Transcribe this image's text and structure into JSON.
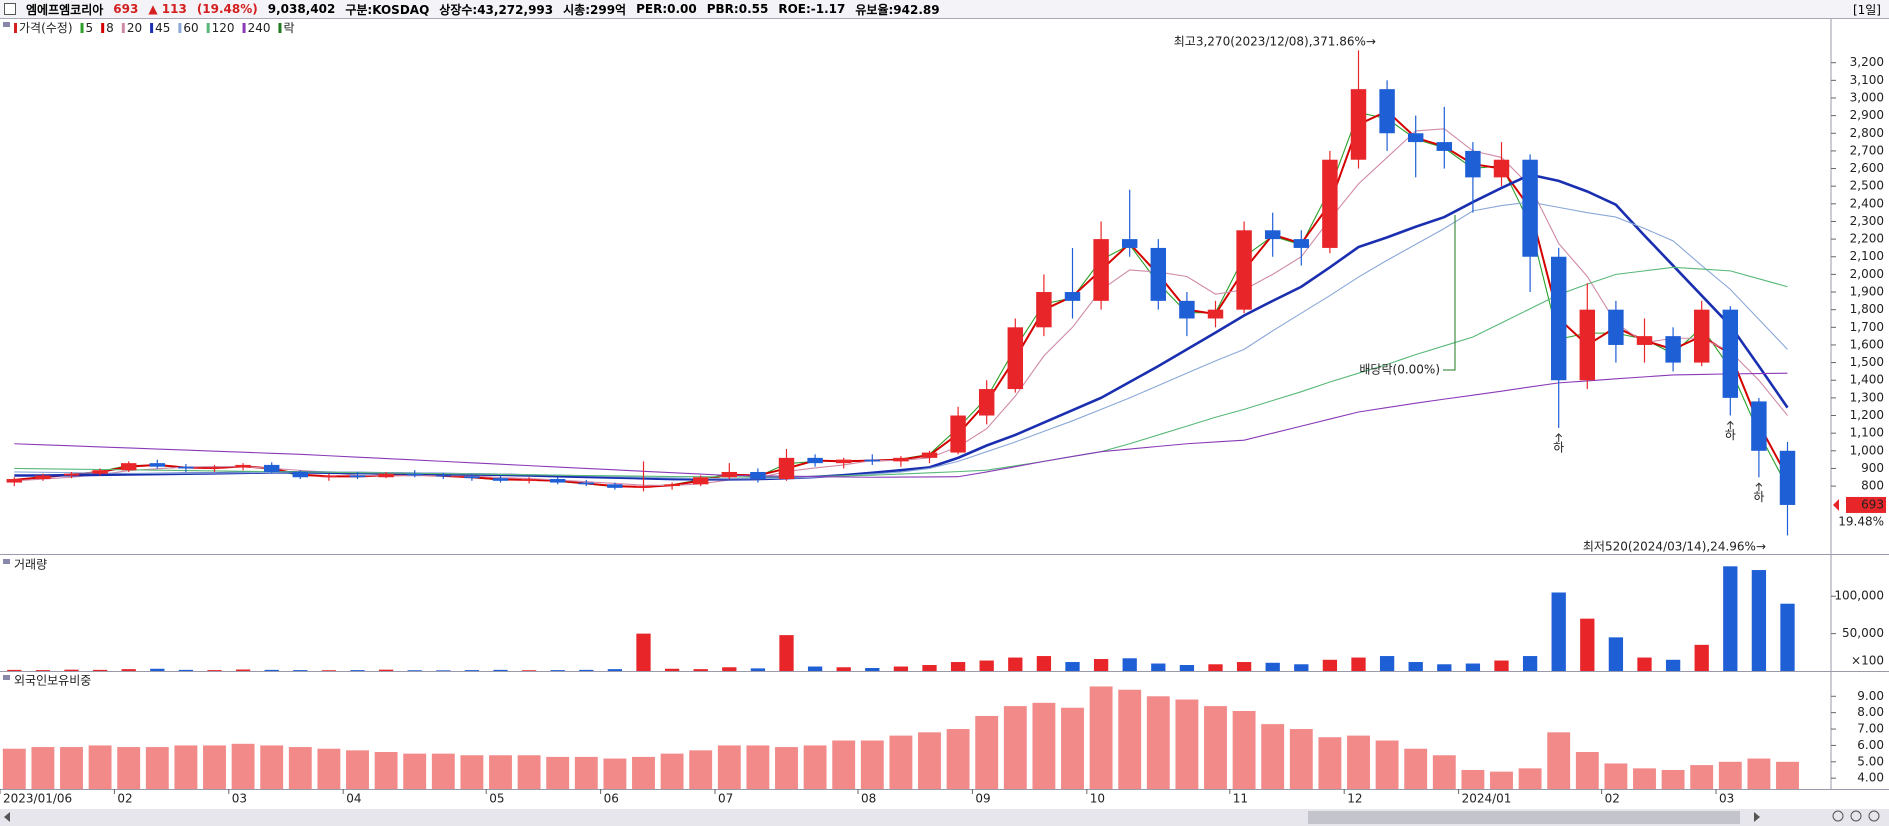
{
  "header": {
    "name": "엠에프엠코리아",
    "price": "693",
    "change": "▲ 113",
    "change_pct": "(19.48%)",
    "volume": "9,038,402",
    "market": "구분:KOSDAQ",
    "shares": "상장수:43,272,993",
    "market_cap": "시총:299억",
    "per": "PER:0.00",
    "pbr": "PBR:0.55",
    "roe": "ROE:-1.17",
    "reserve_ratio": "유보율:942.89",
    "period": "[1일]"
  },
  "chart_data": [
    {
      "type": "candlestick",
      "price_name": "가격(수정)",
      "price_color": "#d42020",
      "ex_rights_name": "락",
      "ex_rights_color": "#1f7a1f",
      "up_color": "#e8262a",
      "down_color": "#1f5fd6",
      "categories": [
        "2023/01/06",
        null,
        null,
        null,
        "02",
        null,
        null,
        null,
        "03",
        null,
        null,
        null,
        "04",
        null,
        null,
        null,
        null,
        "05",
        null,
        null,
        null,
        "06",
        null,
        null,
        null,
        "07",
        null,
        null,
        null,
        null,
        "08",
        null,
        null,
        null,
        "09",
        null,
        null,
        null,
        "10",
        null,
        null,
        null,
        null,
        "11",
        null,
        null,
        null,
        "12",
        null,
        null,
        null,
        "2024/01",
        null,
        null,
        null,
        null,
        "02",
        null,
        null,
        null,
        "03",
        null,
        null
      ],
      "open": [
        820,
        840,
        860,
        870,
        890,
        930,
        910,
        900,
        905,
        920,
        880,
        850,
        860,
        850,
        870,
        860,
        855,
        845,
        830,
        840,
        820,
        810,
        790,
        800,
        810,
        850,
        880,
        840,
        960,
        930,
        950,
        940,
        960,
        990,
        1200,
        1350,
        1700,
        1900,
        1850,
        2200,
        2150,
        1850,
        1750,
        1800,
        2250,
        2200,
        2150,
        2650,
        3050,
        2800,
        2750,
        2700,
        2550,
        2650,
        2100,
        1400,
        1800,
        1600,
        1650,
        1500,
        1800,
        1280,
        1000
      ],
      "high": [
        850,
        870,
        880,
        900,
        940,
        950,
        925,
        920,
        930,
        935,
        890,
        870,
        880,
        880,
        890,
        875,
        870,
        860,
        850,
        850,
        835,
        820,
        940,
        820,
        860,
        930,
        900,
        1010,
        980,
        960,
        980,
        970,
        1000,
        1250,
        1400,
        1750,
        2000,
        2150,
        2300,
        2480,
        2200,
        1900,
        1850,
        2300,
        2350,
        2250,
        2700,
        3270,
        3100,
        2900,
        2950,
        2750,
        2750,
        2680,
        2150,
        1950,
        1850,
        1750,
        1700,
        1850,
        1820,
        1300,
        1050
      ],
      "low": [
        800,
        830,
        845,
        860,
        880,
        900,
        880,
        880,
        890,
        870,
        840,
        830,
        840,
        845,
        850,
        840,
        830,
        820,
        815,
        810,
        800,
        780,
        770,
        780,
        800,
        840,
        820,
        830,
        910,
        900,
        920,
        910,
        930,
        980,
        1150,
        1330,
        1650,
        1750,
        1800,
        2100,
        1800,
        1650,
        1700,
        1780,
        2100,
        2050,
        2120,
        2600,
        2700,
        2550,
        2600,
        2350,
        2500,
        1900,
        1130,
        1350,
        1500,
        1500,
        1450,
        1480,
        1200,
        850,
        520
      ],
      "close": [
        840,
        860,
        870,
        890,
        930,
        910,
        900,
        905,
        920,
        880,
        850,
        860,
        850,
        870,
        860,
        855,
        845,
        830,
        840,
        820,
        810,
        790,
        800,
        810,
        850,
        880,
        840,
        960,
        930,
        950,
        940,
        960,
        990,
        1200,
        1350,
        1700,
        1900,
        1850,
        2200,
        2150,
        1850,
        1750,
        1800,
        2250,
        2200,
        2150,
        2650,
        3050,
        2800,
        2750,
        2700,
        2550,
        2650,
        2100,
        1400,
        1800,
        1600,
        1650,
        1500,
        1800,
        1300,
        1000,
        693
      ],
      "series": [
        {
          "name": "5",
          "color": "#2aa02a",
          "values": [
            835,
            853,
            867,
            883,
            917,
            917,
            903,
            903,
            915,
            893,
            860,
            857,
            853,
            863,
            863,
            857,
            848,
            835,
            837,
            827,
            813,
            797,
            797,
            807,
            837,
            870,
            853,
            927,
            940,
            943,
            943,
            953,
            980,
            1130,
            1300,
            1583,
            1833,
            1867,
            2083,
            2167,
            1950,
            1783,
            1783,
            2100,
            2217,
            2167,
            2483,
            2917,
            2883,
            2767,
            2717,
            2600,
            2617,
            2283,
            1633,
            1667,
            1667,
            1633,
            1550,
            1700,
            1467,
            1100,
            795
          ]
        },
        {
          "name": "8",
          "color": "#d40000",
          "values": [
            835,
            850,
            865,
            880,
            910,
            920,
            905,
            902,
            912,
            900,
            865,
            855,
            855,
            860,
            865,
            858,
            850,
            838,
            835,
            830,
            815,
            800,
            795,
            805,
            830,
            865,
            860,
            900,
            945,
            940,
            945,
            950,
            975,
            1095,
            1275,
            1525,
            1800,
            1875,
            2025,
            2175,
            2000,
            1800,
            1775,
            2025,
            2225,
            2175,
            2400,
            2850,
            2925,
            2775,
            2725,
            2625,
            2600,
            2375,
            1750,
            1600,
            1700,
            1625,
            1575,
            1650,
            1550,
            1150,
            850
          ]
        },
        {
          "name": "20",
          "color": "#d08aa8",
          "values": [
            830,
            840,
            850,
            865,
            888,
            898,
            908,
            911,
            909,
            901,
            889,
            879,
            860,
            858,
            859,
            859,
            858,
            848,
            843,
            834,
            825,
            815,
            805,
            803,
            813,
            835,
            845,
            883,
            903,
            920,
            945,
            945,
            960,
            1023,
            1125,
            1310,
            1538,
            1700,
            1913,
            2025,
            2013,
            1988,
            1888,
            1913,
            2000,
            2100,
            2313,
            2513,
            2663,
            2813,
            2825,
            2700,
            2663,
            2500,
            2175,
            1988,
            1725,
            1613,
            1638,
            1638,
            1563,
            1400,
            1200
          ]
        },
        {
          "name": "45",
          "color": "#1a2fb0",
          "values": [
            860,
            860,
            862,
            864,
            866,
            868,
            870,
            872,
            875,
            878,
            878,
            876,
            874,
            872,
            870,
            868,
            866,
            864,
            860,
            856,
            852,
            848,
            844,
            840,
            838,
            838,
            840,
            845,
            852,
            862,
            875,
            890,
            906,
            960,
            1030,
            1090,
            1160,
            1230,
            1300,
            1390,
            1480,
            1575,
            1670,
            1767,
            1850,
            1930,
            2040,
            2155,
            2210,
            2270,
            2325,
            2410,
            2490,
            2565,
            2530,
            2470,
            2395,
            2220,
            2050,
            1880,
            1710,
            1480,
            1245
          ]
        },
        {
          "name": "60",
          "color": "#8aa8d8",
          "values": [
            880,
            878,
            876,
            874,
            872,
            872,
            872,
            874,
            876,
            878,
            880,
            880,
            878,
            876,
            874,
            872,
            870,
            868,
            865,
            862,
            858,
            854,
            850,
            846,
            843,
            842,
            842,
            845,
            850,
            858,
            868,
            880,
            900,
            940,
            995,
            1050,
            1110,
            1170,
            1235,
            1300,
            1370,
            1440,
            1510,
            1575,
            1680,
            1780,
            1880,
            1985,
            2080,
            2170,
            2260,
            2360,
            2390,
            2410,
            2380,
            2350,
            2325,
            2260,
            2190,
            2050,
            1915,
            1745,
            1575
          ]
        },
        {
          "name": "120",
          "color": "#58b878",
          "values": [
            900,
            898,
            896,
            894,
            892,
            890,
            888,
            886,
            884,
            882,
            880,
            878,
            876,
            874,
            872,
            870,
            868,
            866,
            864,
            862,
            860,
            858,
            856,
            854,
            853,
            852,
            852,
            853,
            855,
            858,
            862,
            868,
            875,
            882,
            890,
            915,
            940,
            968,
            995,
            1040,
            1090,
            1140,
            1190,
            1235,
            1285,
            1335,
            1390,
            1440,
            1490,
            1545,
            1595,
            1645,
            1725,
            1805,
            1885,
            1945,
            2000,
            2020,
            2040,
            2030,
            2020,
            1975,
            1930
          ]
        },
        {
          "name": "240",
          "color": "#8a3ab8",
          "values": [
            1040,
            1034,
            1028,
            1022,
            1016,
            1010,
            1004,
            998,
            992,
            986,
            980,
            972,
            964,
            956,
            948,
            940,
            932,
            924,
            916,
            908,
            900,
            892,
            884,
            876,
            868,
            860,
            858,
            856,
            854,
            852,
            850,
            851,
            852,
            853,
            880,
            910,
            940,
            968,
            995,
            1010,
            1025,
            1040,
            1050,
            1060,
            1100,
            1140,
            1180,
            1220,
            1245,
            1270,
            1293,
            1315,
            1338,
            1362,
            1385,
            1396,
            1408,
            1419,
            1430,
            1433,
            1436,
            1438,
            1440
          ]
        }
      ],
      "ylim": [
        415,
        3446
      ],
      "yticks": [
        800,
        900,
        {
          "value": 1000,
          "label": "1,000"
        },
        {
          "value": 1100,
          "label": "1,100"
        },
        {
          "value": 1200,
          "label": "1,200"
        },
        {
          "value": 1300,
          "label": "1,300"
        },
        {
          "value": 1400,
          "label": "1,400"
        },
        {
          "value": 1500,
          "label": "1,500"
        },
        {
          "value": 1600,
          "label": "1,600"
        },
        {
          "value": 1700,
          "label": "1,700"
        },
        {
          "value": 1800,
          "label": "1,800"
        },
        {
          "value": 1900,
          "label": "1,900"
        },
        {
          "value": 2000,
          "label": "2,000"
        },
        {
          "value": 2100,
          "label": "2,100"
        },
        {
          "value": 2200,
          "label": "2,200"
        },
        {
          "value": 2300,
          "label": "2,300"
        },
        {
          "value": 2400,
          "label": "2,400"
        },
        {
          "value": 2500,
          "label": "2,500"
        },
        {
          "value": 2600,
          "label": "2,600"
        },
        {
          "value": 2700,
          "label": "2,700"
        },
        {
          "value": 2800,
          "label": "2,800"
        },
        {
          "value": 2900,
          "label": "2,900"
        },
        {
          "value": 3000,
          "label": "3,000"
        },
        {
          "value": 3100,
          "label": "3,100"
        },
        {
          "value": 3200,
          "label": "3,200"
        }
      ],
      "max_annotation": "최고3,270(2023/12/08),371.86%→",
      "min_annotation": "최저520(2024/03/14),24.96%→",
      "ex_rights_annotation": "배당락(0.00%)",
      "markers": [
        {
          "text": "하",
          "index": 54
        },
        {
          "text": "하",
          "index": 60
        },
        {
          "text": "하",
          "index": 61
        }
      ],
      "last_change_label": "19.48%"
    },
    {
      "type": "bar",
      "title": "거래량",
      "title_color": "#b8962e",
      "unit": "×100",
      "up_color": "#e8262a",
      "down_color": "#1f5fd6",
      "values": [
        1500,
        1200,
        1800,
        1500,
        2500,
        3000,
        1500,
        1200,
        2000,
        1500,
        1200,
        1000,
        1200,
        1800,
        1000,
        900,
        1200,
        1500,
        1000,
        1200,
        1500,
        2500,
        50000,
        3000,
        2500,
        5000,
        3500,
        48000,
        6000,
        5000,
        4000,
        6000,
        8000,
        12000,
        14000,
        18000,
        20000,
        12000,
        16000,
        17000,
        10000,
        8000,
        9000,
        12000,
        11000,
        9000,
        15000,
        18000,
        20000,
        12000,
        9000,
        10000,
        14000,
        20000,
        105000,
        70000,
        45000,
        18000,
        15000,
        35000,
        140000,
        135000,
        90000
      ],
      "ylim": [
        0,
        153000
      ],
      "yticks": [
        {
          "value": 50000,
          "label": "50,000"
        },
        {
          "value": 100000,
          "label": "100,000"
        }
      ]
    },
    {
      "type": "bar",
      "title": "외국인보유비중",
      "title_color": "#e07070",
      "color": "#f28a8a",
      "values": [
        5.8,
        5.9,
        5.9,
        6.0,
        5.9,
        5.9,
        6.0,
        6.0,
        6.1,
        6.0,
        5.9,
        5.8,
        5.7,
        5.6,
        5.5,
        5.5,
        5.4,
        5.4,
        5.4,
        5.3,
        5.3,
        5.2,
        5.3,
        5.5,
        5.7,
        6.0,
        6.0,
        5.9,
        6.0,
        6.3,
        6.3,
        6.6,
        6.8,
        7.0,
        7.8,
        8.4,
        8.6,
        8.3,
        9.6,
        9.4,
        9.0,
        8.8,
        8.4,
        8.1,
        7.3,
        7.0,
        6.5,
        6.6,
        6.3,
        5.8,
        5.4,
        4.5,
        4.4,
        4.6,
        6.8,
        5.6,
        4.9,
        4.6,
        4.5,
        4.8,
        5.0,
        5.2,
        5.0
      ],
      "ylim": [
        3.34,
        10.47
      ],
      "yticks": [
        {
          "value": 4,
          "label": "4.00"
        },
        {
          "value": 5,
          "label": "5.00"
        },
        {
          "value": 6,
          "label": "6.00"
        },
        {
          "value": 7,
          "label": "7.00"
        },
        {
          "value": 8,
          "label": "8.00"
        },
        {
          "value": 9,
          "label": "9.00"
        }
      ]
    }
  ]
}
